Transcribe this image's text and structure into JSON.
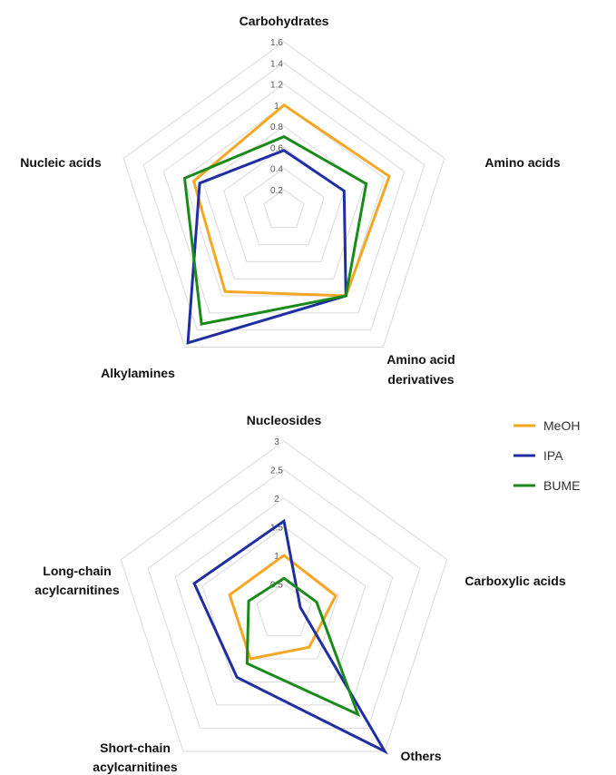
{
  "chart_data": [
    {
      "type": "radar",
      "title": "",
      "axes": [
        "Carbohydrates",
        "Amino acids",
        "Amino acid derivatives",
        "Alkylamines",
        "Nucleic acids"
      ],
      "axis_label_lines": [
        [
          "Carbohydrates"
        ],
        [
          "Amino acids"
        ],
        [
          "Amino acid",
          "derivatives"
        ],
        [
          "Alkylamines"
        ],
        [
          "Nucleic acids"
        ]
      ],
      "range": [
        0,
        1.6
      ],
      "ticks": [
        "0.2",
        "0.4",
        "0.6",
        "0.8",
        "1",
        "1.2",
        "1.4",
        "1.6"
      ],
      "tick_values": [
        0.2,
        0.4,
        0.6,
        0.8,
        1.0,
        1.2,
        1.4,
        1.6
      ],
      "grid_rings": [
        0.2,
        0.4,
        0.6,
        0.8,
        1.0,
        1.2,
        1.4,
        1.6
      ],
      "series": [
        {
          "name": "MeOH",
          "color": "#f5a623",
          "values": [
            1.0,
            1.05,
            1.0,
            0.95,
            0.9
          ]
        },
        {
          "name": "IPA",
          "color": "#1f2ea0",
          "values": [
            0.57,
            0.6,
            1.0,
            1.55,
            0.84
          ]
        },
        {
          "name": "BUME",
          "color": "#1a8a1a",
          "values": [
            0.7,
            0.82,
            1.0,
            1.33,
            0.99
          ]
        }
      ]
    },
    {
      "type": "radar",
      "title": "",
      "axes": [
        "Nucleosides",
        "Carboxylic acids",
        "Others",
        "Short-chain acylcarnitines",
        "Long-chain acylcarnitines"
      ],
      "axis_label_lines": [
        [
          "Nucleosides"
        ],
        [
          "Carboxylic acids"
        ],
        [
          "Others"
        ],
        [
          "Short-chain",
          "acylcarnitines"
        ],
        [
          "Long-chain",
          "acylcarnitines"
        ]
      ],
      "range": [
        0,
        3
      ],
      "ticks": [
        "0.5",
        "1",
        "1.5",
        "2",
        "2.5",
        "3"
      ],
      "tick_values": [
        0.5,
        1.0,
        1.5,
        2.0,
        2.5,
        3.0
      ],
      "grid_rings": [
        0.5,
        1.0,
        1.5,
        2.0,
        2.5,
        3.0
      ],
      "series": [
        {
          "name": "MeOH",
          "color": "#f5a623",
          "values": [
            1.0,
            0.95,
            0.75,
            1.0,
            1.0
          ]
        },
        {
          "name": "IPA",
          "color": "#1f2ea0",
          "values": [
            1.6,
            0.3,
            3.0,
            1.4,
            1.65
          ]
        },
        {
          "name": "BUME",
          "color": "#1a8a1a",
          "values": [
            0.6,
            0.6,
            2.2,
            1.1,
            0.65
          ]
        }
      ]
    }
  ],
  "legend": {
    "position": "right",
    "items": [
      {
        "label": "MeOH",
        "color": "#f5a623"
      },
      {
        "label": "IPA",
        "color": "#1f2ea0"
      },
      {
        "label": "BUME",
        "color": "#1a8a1a"
      }
    ]
  }
}
